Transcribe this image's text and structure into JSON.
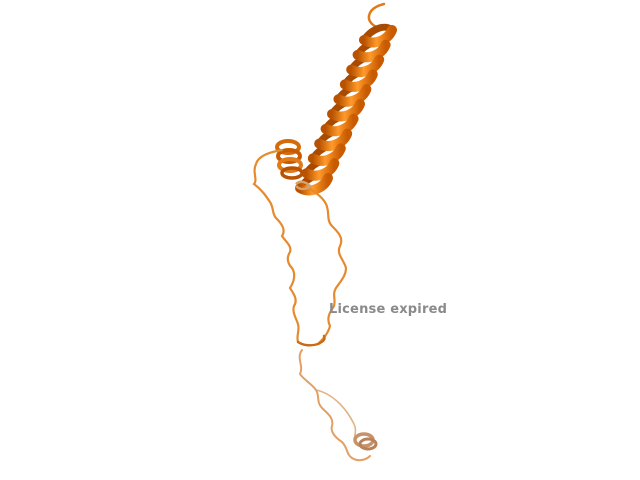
{
  "viewer": {
    "background": "#ffffff",
    "watermark_text": "License expired"
  },
  "structure": {
    "representation": "cartoon",
    "colors": {
      "helix_light": "#f6921e",
      "helix_dark": "#c85a00",
      "coil": "#e68a2e",
      "coil_far": "#d9a06a",
      "helix_far": "#c7936a"
    }
  }
}
